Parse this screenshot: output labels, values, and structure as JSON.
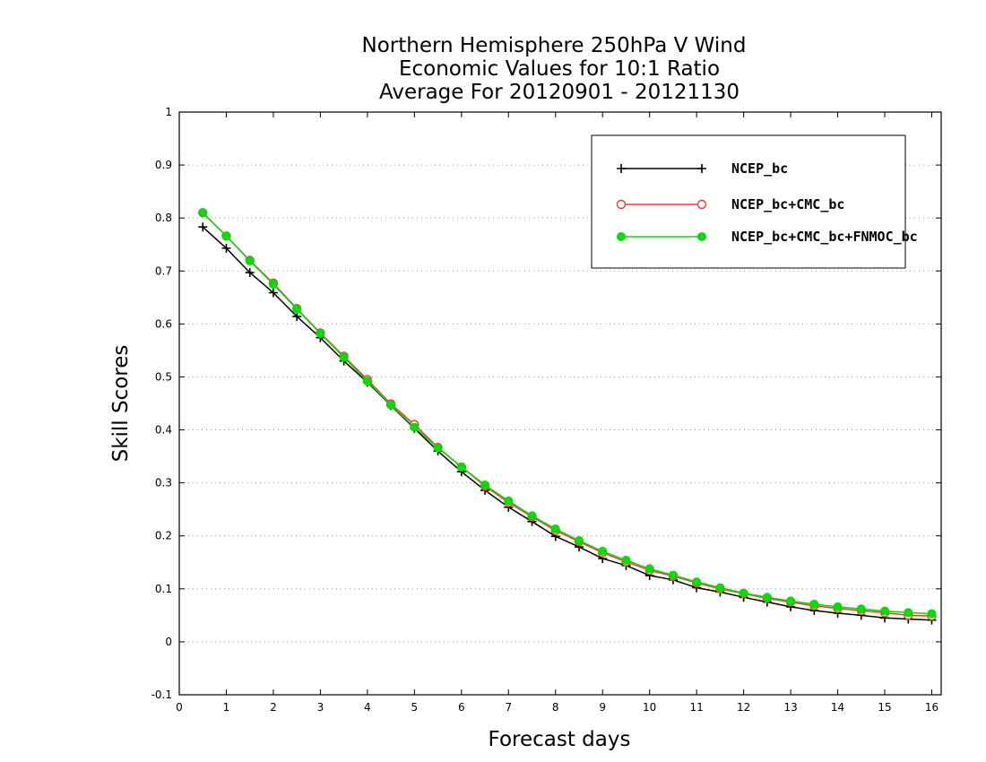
{
  "chart_data": {
    "type": "line",
    "title_lines": [
      "Northern Hemisphere 250hPa V Wind",
      "Economic Values for 10:1 Ratio",
      "Average For 20120901 - 20121130"
    ],
    "xlabel": "Forecast days",
    "ylabel": "Skill Scores",
    "xlim": [
      0,
      16.2
    ],
    "ylim": [
      -0.1,
      1
    ],
    "xticks": [
      0,
      1,
      2,
      3,
      4,
      5,
      6,
      7,
      8,
      9,
      10,
      11,
      12,
      13,
      14,
      15,
      16
    ],
    "yticks": [
      -0.1,
      0,
      0.1,
      0.2,
      0.3,
      0.4,
      0.5,
      0.6,
      0.7,
      0.8,
      0.9,
      1
    ],
    "ytick_labels": [
      "-0.1",
      "0",
      "0.1",
      "0.2",
      "0.3",
      "0.4",
      "0.5",
      "0.6",
      "0.7",
      "0.8",
      "0.9",
      "1"
    ],
    "grid": "horizontal dotted",
    "legend_position": "top-right",
    "x": [
      0.5,
      1,
      1.5,
      2,
      2.5,
      3,
      3.5,
      4,
      4.5,
      5,
      5.5,
      6,
      6.5,
      7,
      7.5,
      8,
      8.5,
      9,
      9.5,
      10,
      10.5,
      11,
      11.5,
      12,
      12.5,
      13,
      13.5,
      14,
      14.5,
      15,
      15.5,
      16
    ],
    "series": [
      {
        "name": "NCEP_bc",
        "color": "#000000",
        "marker": "plus",
        "values": [
          0.783,
          0.743,
          0.697,
          0.659,
          0.614,
          0.574,
          0.53,
          0.49,
          0.446,
          0.403,
          0.36,
          0.321,
          0.286,
          0.254,
          0.227,
          0.199,
          0.179,
          0.157,
          0.144,
          0.125,
          0.117,
          0.102,
          0.094,
          0.084,
          0.075,
          0.066,
          0.059,
          0.054,
          0.05,
          0.045,
          0.043,
          0.041
        ]
      },
      {
        "name": "NCEP_bc+CMC_bc",
        "color": "#ff3333",
        "marker": "open-circle",
        "values": [
          0.81,
          0.766,
          0.72,
          0.677,
          0.629,
          0.583,
          0.539,
          0.495,
          0.449,
          0.41,
          0.367,
          0.33,
          0.294,
          0.263,
          0.236,
          0.21,
          0.189,
          0.168,
          0.151,
          0.135,
          0.124,
          0.111,
          0.1,
          0.091,
          0.082,
          0.075,
          0.068,
          0.063,
          0.059,
          0.055,
          0.05,
          0.049
        ]
      },
      {
        "name": "NCEP_bc+CMC_bc+FNMOC_bc",
        "color": "#00dd00",
        "marker": "filled-circle",
        "values": [
          0.81,
          0.766,
          0.719,
          0.675,
          0.628,
          0.582,
          0.537,
          0.492,
          0.447,
          0.405,
          0.366,
          0.33,
          0.296,
          0.266,
          0.238,
          0.213,
          0.191,
          0.171,
          0.154,
          0.138,
          0.126,
          0.113,
          0.102,
          0.092,
          0.084,
          0.077,
          0.071,
          0.066,
          0.062,
          0.058,
          0.055,
          0.053
        ]
      }
    ]
  }
}
